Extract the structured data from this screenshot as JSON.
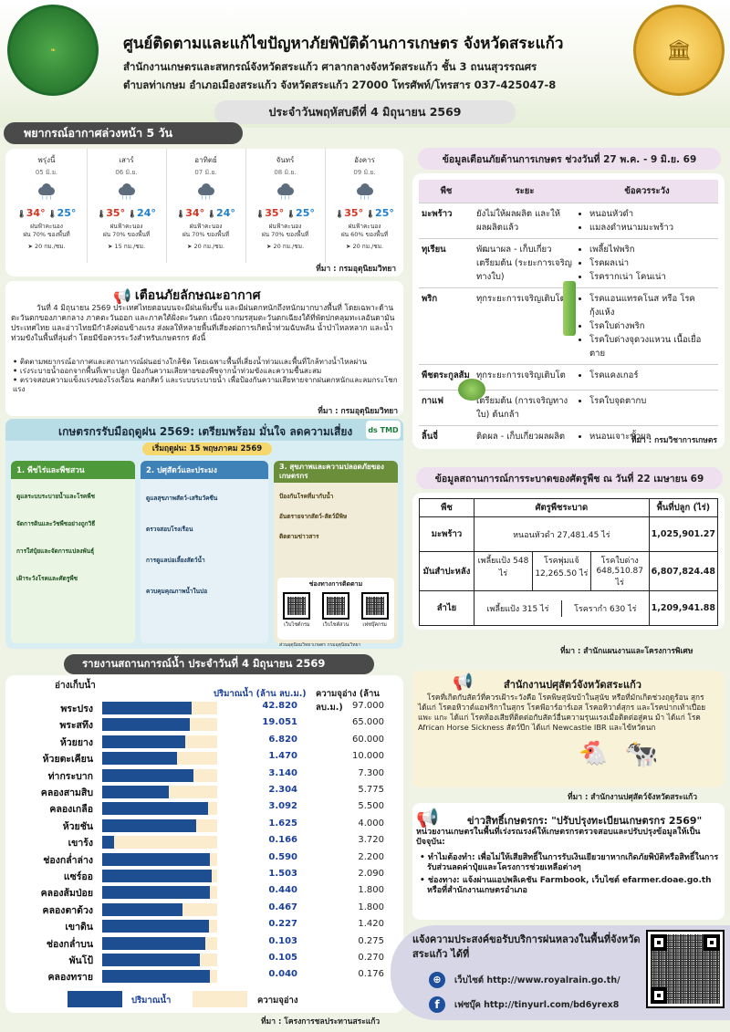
{
  "header": {
    "title": "ศูนย์ติดตามและแก้ไขปัญหาภัยพิบัติด้านการเกษตร จังหวัดสระแก้ว",
    "line1": "สำนักงานเกษตรและสหกรณ์จังหวัดสระแก้ว ศาลากลางจังหวัดสระแก้ว ชั้น 3 ถนนสุวรรณศร",
    "line2": "ตำบลท่าเกษม อำเภอเมืองสระแก้ว จังหวัดสระแก้ว 27000 โทรศัพท์/โทรสาร 037-425047-8",
    "date": "ประจำวันพฤหัสบดีที่ 4 มิถุนายน 2569",
    "logo_left_text": "กระทรวงเกษตรและสหกรณ์ MINISTRY OF AGRICULTURE AND COOPERATIVES",
    "logo_right_text": "ศาลากลาง"
  },
  "forecast": {
    "title": "พยากรณ์อากาศล่วงหน้า 5 วัน",
    "source": "ที่มา : กรมอุตุนิยมวิทยา",
    "days": [
      {
        "name": "พรุ่งนี้",
        "date": "05 มิ.ย.",
        "high": "34°",
        "low": "25°",
        "desc": "ฝนฟ้าคะนอง",
        "rain": "ฝน 70% ของพื้นที่",
        "wind": "20 กม./ชม."
      },
      {
        "name": "เสาร์",
        "date": "06 มิ.ย.",
        "high": "35°",
        "low": "24°",
        "desc": "ฝนฟ้าคะนอง",
        "rain": "ฝน 70% ของพื้นที่",
        "wind": "15 กม./ชม."
      },
      {
        "name": "อาทิตย์",
        "date": "07 มิ.ย.",
        "high": "34°",
        "low": "24°",
        "desc": "ฝนฟ้าคะนอง",
        "rain": "ฝน 70% ของพื้นที่",
        "wind": "20 กม./ชม."
      },
      {
        "name": "จันทร์",
        "date": "08 มิ.ย.",
        "high": "35°",
        "low": "25°",
        "desc": "ฝนฟ้าคะนอง",
        "rain": "ฝน 70% ของพื้นที่",
        "wind": "20 กม./ชม."
      },
      {
        "name": "อังคาร",
        "date": "09 มิ.ย.",
        "high": "35°",
        "low": "25°",
        "desc": "ฝนฟ้าคะนอง",
        "rain": "ฝน 60% ของพื้นที่",
        "wind": "20 กม./ชม."
      }
    ]
  },
  "warning": {
    "title": "เตือนภัยลักษณะอากาศ",
    "body": "วันที่ 4 มิถุนายน 2569 ประเทศไทยตอนบนจะมีฝนเพิ่มขึ้น และมีฝนตกหนักถึงหนักมากบางพื้นที่ โดยเฉพาะด้านตะวันตกของภาคกลาง ภาคตะวันออก และภาคใต้ฝั่งตะวันตก เนื่องจากมรสุมตะวันตกเฉียงใต้ที่พัดปกคลุมทะเลอันดามัน ประเทศไทย และอ่าวไทยมีกำลังค่อนข้างแรง ส่งผลให้หลายพื้นที่เสี่ยงต่อการเกิดน้ำท่วมฉับพลัน น้ำป่าไหลหลาก และน้ำท่วมขังในพื้นที่ลุ่มต่ำ โดยมีข้อควรระวังสำหรับเกษตรกร ดังนี้",
    "items": [
      "ติดตามพยากรณ์อากาศและสถานการณ์ฝนอย่างใกล้ชิด โดยเฉพาะพื้นที่เสี่ยงน้ำท่วมและพื้นที่ใกล้ทางน้ำไหลผ่าน",
      "เร่งระบายน้ำออกจากพื้นที่เพาะปลูก ป้องกันความเสียหายของพืชจากน้ำท่วมขังและความชื้นสะสม",
      "ตรวจสอบความแข็งแรงของโรงเรือน คอกสัตว์ และระบบระบายน้ำ เพื่อป้องกันความเสียหายจากฝนตกหนักและลมกระโชกแรง"
    ],
    "source": "ที่มา : กรมอุตุนิยมวิทยา"
  },
  "poster": {
    "title": "เกษตรกรรับมือฤดูฝน 2569: เตรียมพร้อม มั่นใจ ลดความเสี่ยง",
    "start": "เริ่มฤดูฝน: 15 พฤษภาคม 2569",
    "logo1": "ds",
    "logo2": "TMD",
    "sec1": "1. พืชไร่และพืชสวน",
    "sec2": "2. ปศุสัตว์และประมง",
    "sec3": "3. สุขภาพและความปลอดภัยของเกษตรกร",
    "sec1_items": [
      "ดูแลระบบระบายน้ำและโรคพืช",
      "จัดการดินและวัชพืชอย่างถูกวิธี",
      "การใส่ปุ๋ยและจัดการแปลงพันธุ์",
      "เฝ้าระวังโรคและศัตรูพืช"
    ],
    "sec2_items": [
      "ดูแลสุขภาพสัตว์-เสริมวัคซีน",
      "ตรวจสอบโรงเรือน",
      "การดูแลบ่อเลี้ยงสัตว์น้ำ",
      "ควบคุมคุณภาพน้ำในบ่อ"
    ],
    "sec3_items": [
      "ป้องกันโรคที่มากับน้ำ",
      "อันตรายจากสัตว์-สัตว์มีพิษ",
      "ติดตามข่าวสาร"
    ],
    "contact_title": "ช่องทางการติดตาม",
    "qr_labels": [
      "เว็บไซต์กรม",
      "เว็บไซต์สวน",
      "เฟซบุ๊คกรม"
    ],
    "foot": "ส่วนอุตุนิยมวิทยาเกษตร กรมอุตุนิยมวิทยา"
  },
  "alert": {
    "title": "ข้อมูลเตือนภัยด้านการเกษตร ช่วงวันที่ 27 พ.ค. - 9 มิ.ย. 69",
    "headers": [
      "พืช",
      "ระยะ",
      "ข้อควรระวัง"
    ],
    "rows": [
      {
        "crop": "มะพร้าว",
        "stage": "ยังไม่ให้ผลผลิต และให้ผลผลิตแล้ว",
        "risks": [
          "หนอนหัวดำ",
          "แมลงดำหนามมะพร้าว"
        ]
      },
      {
        "crop": "ทุเรียน",
        "stage": "พัฒนาผล - เก็บเกี่ยว เตรียมต้น (ระยะการเจริญทางใบ)",
        "risks": [
          "เพลี้ยไฟพริก",
          "โรคผลเน่า",
          "โรครากเน่า โคนเน่า"
        ]
      },
      {
        "crop": "พริก",
        "stage": "ทุกระยะการเจริญเติบโต",
        "risks": [
          "โรคแอนแทรคโนส หรือ โรคกุ้งแห้ง",
          "โรคใบด่างพริก",
          "โรคใบด่างจุดวงแหวน เนื้อเยื่อตาย"
        ]
      },
      {
        "crop": "พืชตระกูลส้ม",
        "stage": "ทุกระยะการเจริญเติบโต",
        "risks": [
          "โรคแคงเกอร์"
        ]
      },
      {
        "crop": "กาแฟ",
        "stage": "เตรียมต้น (การเจริญทางใบ) ต้นกล้า",
        "risks": [
          "โรคใบจุดตากบ"
        ]
      },
      {
        "crop": "ลิ้นจี่",
        "stage": "ติดผล - เก็บเกี่ยวผลผลิต",
        "risks": [
          "หนอนเจาะขั้วผล"
        ]
      }
    ],
    "source": "ที่มา : กรมวิชาการเกษตร"
  },
  "pest": {
    "title": "ข้อมูลสถานการณ์การระบาดของศัตรูพืช ณ วันที่ 22 เมษายน 69",
    "headers": [
      "พืช",
      "ศัตรูพืชระบาด",
      "พื้นที่ปลูก (ไร่)"
    ],
    "rows": [
      {
        "crop": "มะพร้าว",
        "pests": [
          "หนอนหัวดำ 27,481.45 ไร่"
        ],
        "area": "1,025,901.27"
      },
      {
        "crop": "มันสำปะหลัง",
        "pests": [
          "เพลี้ยแป้ง 548 ไร่",
          "โรคพุ่มแจ้ 12,265.50 ไร่",
          "โรคใบด่าง 648,510.87 ไร่"
        ],
        "area": "6,807,824.48"
      },
      {
        "crop": "ลำไย",
        "pests": [
          "เพลี้ยแป้ง 315 ไร่",
          "โรครากำ 630 ไร่"
        ],
        "area": "1,209,941.88"
      }
    ],
    "source": "ที่มา : สำนักแผนงานและโครงการพิเศษ"
  },
  "water": {
    "title": "รายงานสถานการณ์น้ำ ประจำวันที่ 4 มิถุนายน 2569",
    "col_name": "อ่างเก็บน้ำ",
    "col_vol": "ปริมาณน้ำ (ล้าน ลบ.ม.)",
    "col_cap": "ความจุอ่าง (ล้าน ลบ.ม.)",
    "legend_vol": "ปริมาณน้ำ",
    "legend_cap": "ความจุอ่าง",
    "source": "ที่มา : โครงการชลประทานสระแก้ว",
    "rows": [
      {
        "name": "พระปรง",
        "vol": "42.820",
        "cap": "97.000",
        "ratio": 0.78
      },
      {
        "name": "พระสทึง",
        "vol": "19.051",
        "cap": "65.000",
        "ratio": 0.76
      },
      {
        "name": "ห้วยยาง",
        "vol": "6.820",
        "cap": "60.000",
        "ratio": 0.72
      },
      {
        "name": "ห้วยตะเคียน",
        "vol": "1.470",
        "cap": "10.000",
        "ratio": 0.65
      },
      {
        "name": "ท่ากระบาก",
        "vol": "3.140",
        "cap": "7.300",
        "ratio": 0.79
      },
      {
        "name": "คลองสามสิบ",
        "vol": "2.304",
        "cap": "5.775",
        "ratio": 0.58
      },
      {
        "name": "คลองเกลือ",
        "vol": "3.092",
        "cap": "5.500",
        "ratio": 0.92
      },
      {
        "name": "ห้วยชัน",
        "vol": "1.625",
        "cap": "4.000",
        "ratio": 0.82
      },
      {
        "name": "เขาร้ง",
        "vol": "0.166",
        "cap": "3.720",
        "ratio": 0.1
      },
      {
        "name": "ช่องกล่ำล่าง",
        "vol": "0.590",
        "cap": "2.200",
        "ratio": 0.94
      },
      {
        "name": "แซร์ออ",
        "vol": "1.503",
        "cap": "2.090",
        "ratio": 0.95
      },
      {
        "name": "คลองส้มป่อย",
        "vol": "0.440",
        "cap": "1.800",
        "ratio": 0.94
      },
      {
        "name": "คลองตาด้วง",
        "vol": "0.467",
        "cap": "1.800",
        "ratio": 0.7
      },
      {
        "name": "เขาดิน",
        "vol": "0.227",
        "cap": "1.420",
        "ratio": 0.93
      },
      {
        "name": "ช่องกล่ำบน",
        "vol": "0.103",
        "cap": "0.275",
        "ratio": 0.9
      },
      {
        "name": "พันโป้",
        "vol": "0.105",
        "cap": "0.270",
        "ratio": 0.85
      },
      {
        "name": "คลองทราย",
        "vol": "0.040",
        "cap": "0.176",
        "ratio": 0.94
      }
    ]
  },
  "livestock": {
    "title": "สำนักงานปศุสัตว์จังหวัดสระแก้ว",
    "body": "โรคที่เกิดกับสัตว์ที่ควรเฝ้าระวังคือ โรคพิษสุนัขบ้าในสุนัข หรือที่มักเกิดช่วงฤดูร้อน สุกร ได้แก่ โรคอหิวาต์แอฟริกาในสุกร โรคพีอาร์อาร์เอส โรคอหิวาต์สุกร และโรคปากเท้าเปื่อย แพะ แกะ ได้แก่ โรคท้องเสียที่ติดต่อกับสัตว์อื่นความรุนแรงเมื่อติดต่อสู่คน ม้า ได้แก่ โรค African Horse Sickness สัตว์ปีก ได้แก่ Newcastle IBR และไข้หวัดนก",
    "source": "ที่มา : สำนักงานปศุสัตว์จังหวัดสระแก้ว"
  },
  "news": {
    "title": "ข่าวสิทธิ์เกษตรกร: \"ปรับปรุงทะเบียนเกษตรกร 2569\"",
    "intro": "หน่วยงานเกษตรในพื้นที่เร่งรณรงค์ให้เกษตรกรตรวจสอบและปรับปรุงข้อมูลให้เป็นปัจจุบัน:",
    "items": [
      "ทำไมต้องทำ: เพื่อไม่ให้เสียสิทธิ์ในการรับเงินเยียวยาหากเกิดภัยพิบัติหรือสิทธิ์ในการรับส่วนลดค่าปุ๋ยและโครงการช่วยเหลือต่างๆ",
      "ช่องทาง: แจ้งผ่านแอปพลิเคชัน Farmbook, เว็บไซต์ efarmer.doae.go.th หรือที่สำนักงานเกษตรอำเภอ"
    ]
  },
  "rainmaking": {
    "title": "แจ้งความประสงค์ขอรับบริการฝนหลวงในพื้นที่จังหวัดสระแก้ว ได้ที่",
    "web_label": "เว็บไซต์",
    "web_url": "http://www.royalrain.go.th/",
    "fb_label": "เฟซบุ๊ค",
    "fb_url": "http://tinyurl.com/bd6yrex8"
  }
}
